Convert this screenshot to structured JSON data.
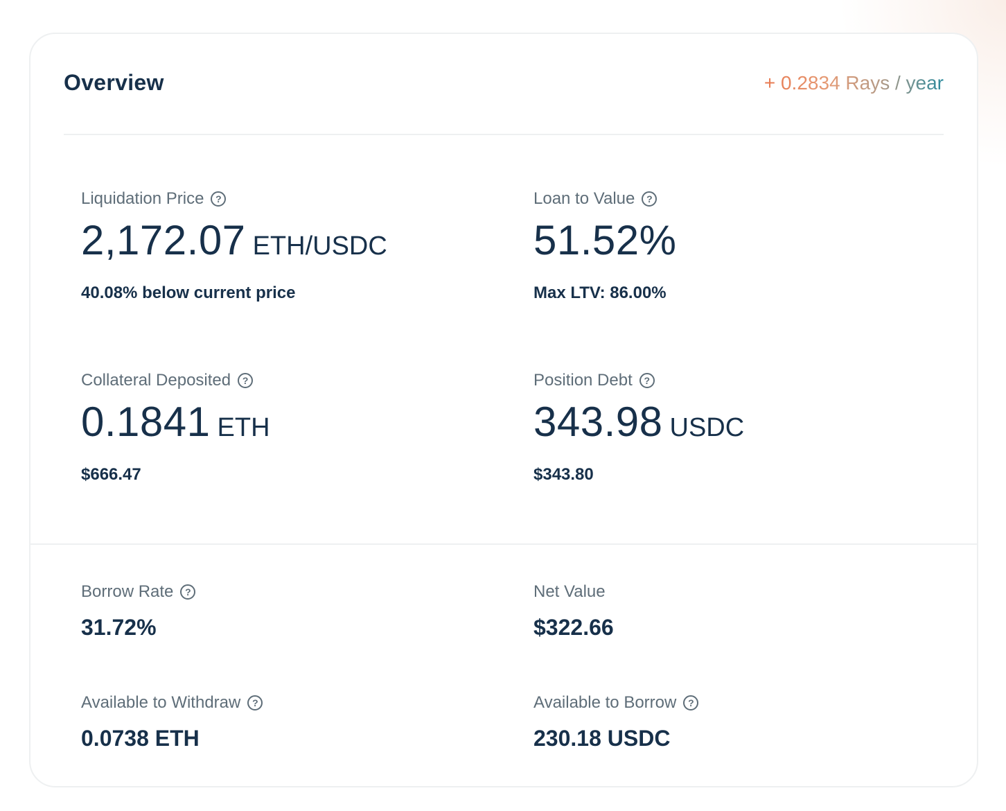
{
  "header": {
    "title": "Overview",
    "rays": "+ 0.2834 Rays / year"
  },
  "metrics": {
    "liquidation_price": {
      "label": "Liquidation Price",
      "value": "2,172.07",
      "unit": "ETH/USDC",
      "sub": "40.08% below current price"
    },
    "loan_to_value": {
      "label": "Loan to Value",
      "value": "51.52%",
      "sub": "Max LTV: 86.00%"
    },
    "collateral_deposited": {
      "label": "Collateral Deposited",
      "value": "0.1841",
      "unit": "ETH",
      "sub": "$666.47"
    },
    "position_debt": {
      "label": "Position Debt",
      "value": "343.98",
      "unit": "USDC",
      "sub": "$343.80"
    }
  },
  "details": {
    "borrow_rate": {
      "label": "Borrow Rate",
      "value": "31.72%"
    },
    "net_value": {
      "label": "Net Value",
      "value": "$322.66"
    },
    "available_to_withdraw": {
      "label": "Available to Withdraw",
      "value": "0.0738 ETH"
    },
    "available_to_borrow": {
      "label": "Available to Borrow",
      "value": "230.18 USDC"
    }
  },
  "icons": {
    "help_glyph": "?"
  },
  "colors": {
    "text_primary": "#17304a",
    "text_label": "#5e6d78",
    "rays_gradient_start": "#e8784f",
    "rays_gradient_end": "#2b8a9d",
    "border": "#eef0f1"
  }
}
